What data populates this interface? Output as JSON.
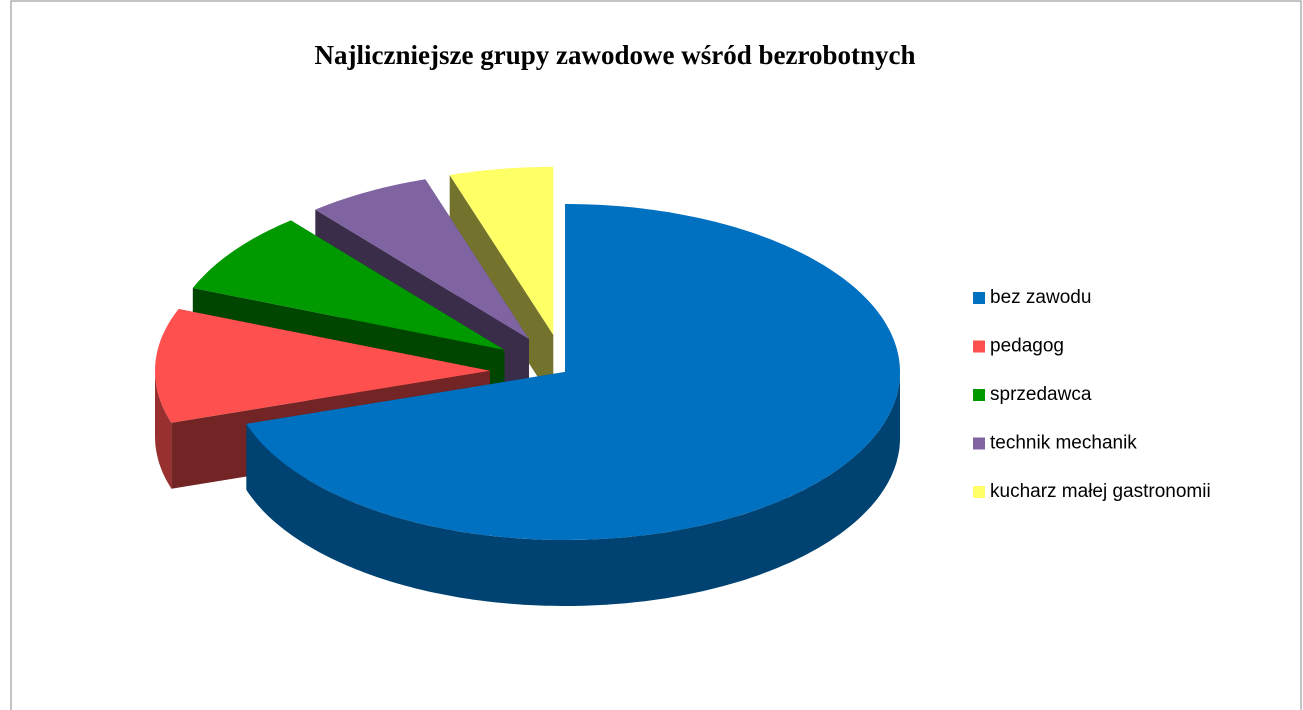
{
  "chart_data": {
    "type": "pie3d",
    "title": "Najliczniejsze grupy zawodowe wśród bezrobotnych",
    "categories": [
      "bez zawodu",
      "pedagog",
      "sprzedawca",
      "technik mechanik",
      "kucharz małej gastronomii"
    ],
    "values": [
      70,
      11,
      8,
      6,
      5
    ],
    "colors": [
      "#0070c0",
      "#ff5050",
      "#009900",
      "#8064a2",
      "#ffff66"
    ],
    "legend": "right"
  }
}
